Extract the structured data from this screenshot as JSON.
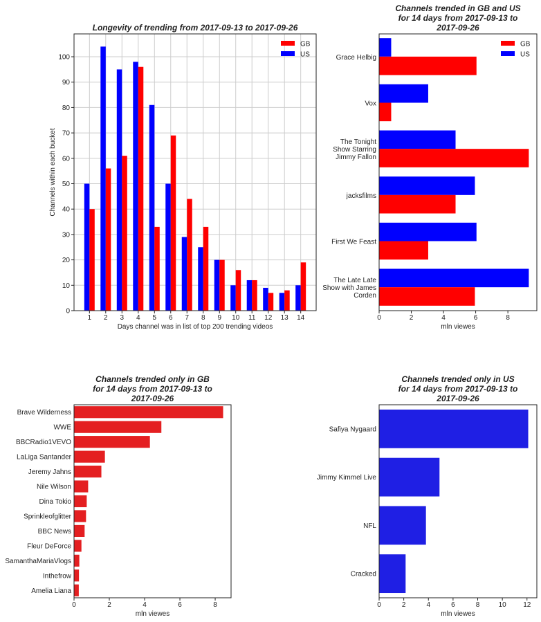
{
  "chart_data": [
    {
      "type": "bar",
      "title": "Longevity of trending from 2017-09-13 to 2017-09-26",
      "xlabel": "Days channel was in list of top 200 trending videos",
      "ylabel": "Channels within each bucket",
      "categories": [
        "1",
        "2",
        "3",
        "4",
        "5",
        "6",
        "7",
        "8",
        "9",
        "10",
        "11",
        "12",
        "13",
        "14"
      ],
      "series": [
        {
          "name": "US",
          "color": "#0000ff",
          "values": [
            50,
            104,
            95,
            98,
            81,
            50,
            29,
            25,
            20,
            10,
            12,
            9,
            7,
            10
          ]
        },
        {
          "name": "GB",
          "color": "#ff0000",
          "values": [
            40,
            56,
            61,
            96,
            33,
            69,
            44,
            33,
            20,
            16,
            12,
            7,
            8,
            19
          ]
        }
      ],
      "legend": [
        {
          "name": "GB",
          "color": "#ff0000"
        },
        {
          "name": "US",
          "color": "#0000ff"
        }
      ],
      "legend_position": "top-right",
      "yticks": [
        0,
        10,
        20,
        30,
        40,
        50,
        60,
        70,
        80,
        90,
        100
      ],
      "ylim": [
        0,
        109
      ],
      "grid": true
    },
    {
      "type": "bar",
      "orientation": "horizontal",
      "title_lines": [
        "Channels trended in GB and US",
        "for 14 days from 2017-09-13 to",
        "2017-09-26"
      ],
      "xlabel": "mln viewes",
      "categories": [
        [
          "Grace Helbig"
        ],
        [
          "Vox"
        ],
        [
          "The Tonight",
          "Show Starring",
          "Jimmy Fallon"
        ],
        [
          "jacksfilms"
        ],
        [
          "First We Feast"
        ],
        [
          "The Late Late",
          "Show with James",
          "Corden"
        ]
      ],
      "series": [
        {
          "name": "US",
          "color": "#0000ff",
          "values": [
            0.75,
            3.05,
            4.75,
            5.95,
            6.05,
            9.3
          ]
        },
        {
          "name": "GB",
          "color": "#ff0000",
          "values": [
            6.05,
            0.75,
            9.3,
            4.75,
            3.05,
            5.95
          ]
        }
      ],
      "legend": [
        {
          "name": "GB",
          "color": "#ff0000"
        },
        {
          "name": "US",
          "color": "#0000ff"
        }
      ],
      "legend_position": "top-right",
      "xticks": [
        0,
        2,
        4,
        6,
        8
      ],
      "xlim": [
        0,
        9.8
      ],
      "grid": false
    },
    {
      "type": "bar",
      "orientation": "horizontal",
      "title_lines": [
        "Channels trended only in GB",
        "for 14 days from 2017-09-13 to",
        "2017-09-26"
      ],
      "xlabel": "mln viewes",
      "color": "#e41f21",
      "categories": [
        "Brave Wilderness",
        "WWE",
        "BBCRadio1VEVO",
        "LaLiga Santander",
        "Jeremy Jahns",
        "Nile Wilson",
        "Dina Tokio",
        "Sprinkleofglitter",
        "BBC News",
        "Fleur DeForce",
        "SamanthaMariaVlogs",
        "Inthefrow",
        "Amelia Liana"
      ],
      "values": [
        8.45,
        4.95,
        4.3,
        1.75,
        1.55,
        0.8,
        0.72,
        0.68,
        0.6,
        0.42,
        0.3,
        0.28,
        0.27
      ],
      "xticks": [
        0,
        2,
        4,
        6,
        8
      ],
      "xlim": [
        0,
        8.9
      ],
      "grid": false
    },
    {
      "type": "bar",
      "orientation": "horizontal",
      "title_lines": [
        "Channels trended only in US",
        "for 14 days from 2017-09-13 to",
        "2017-09-26"
      ],
      "xlabel": "mln viewes",
      "color": "#1f1fe4",
      "categories": [
        "Safiya Nygaard",
        "Jimmy Kimmel Live",
        "NFL",
        "Cracked"
      ],
      "values": [
        12.1,
        4.9,
        3.8,
        2.15
      ],
      "xticks": [
        0,
        2,
        4,
        6,
        8,
        10,
        12
      ],
      "xlim": [
        0,
        12.8
      ],
      "grid": false
    }
  ]
}
